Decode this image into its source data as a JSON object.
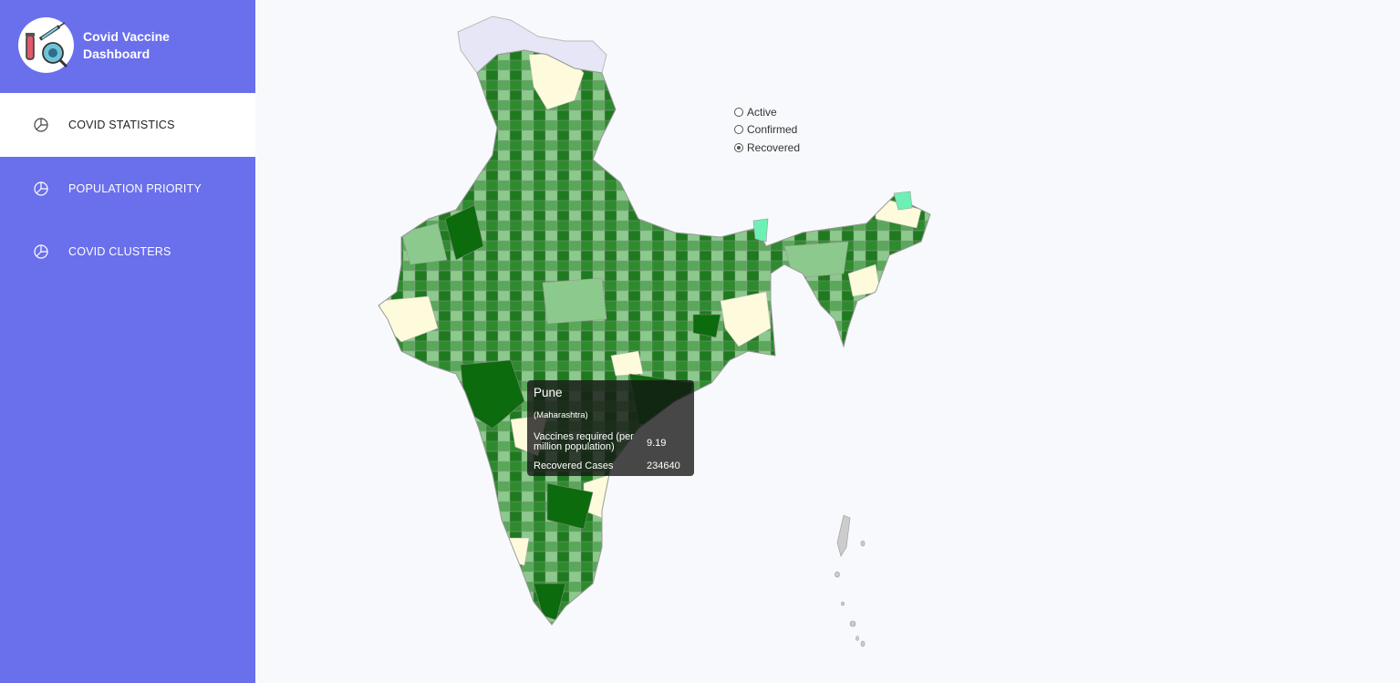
{
  "brand": {
    "title": "Covid Vaccine Dashboard",
    "logo_icon": "vaccine-virus-icon"
  },
  "nav": {
    "items": [
      {
        "label": "COVID STATISTICS",
        "icon": "pie-chart-icon",
        "active": true
      },
      {
        "label": "POPULATION PRIORITY",
        "icon": "pie-chart-icon",
        "active": false
      },
      {
        "label": "COVID CLUSTERS",
        "icon": "pie-chart-icon",
        "active": false
      }
    ]
  },
  "map_options": {
    "items": [
      {
        "label": "Active",
        "checked": false
      },
      {
        "label": "Confirmed",
        "checked": false
      },
      {
        "label": "Recovered",
        "checked": true
      }
    ]
  },
  "tooltip": {
    "district": "Pune",
    "state": "(Maharashtra)",
    "vaccines_label": "Vaccines required (per million population)",
    "vaccines_value": "9.19",
    "cases_label": "Recovered Cases",
    "cases_value": "234640"
  },
  "colors": {
    "sidebar_bg": "#6a6fec",
    "page_bg": "#f8f9fc",
    "map_dark_green": "#0c6b0c",
    "map_mid_green": "#3f9b3f",
    "map_light_green": "#8cc98c",
    "map_pale": "#fdfbdc",
    "map_disputed": "#e6e6f7",
    "map_border": "#bbbbbb"
  }
}
